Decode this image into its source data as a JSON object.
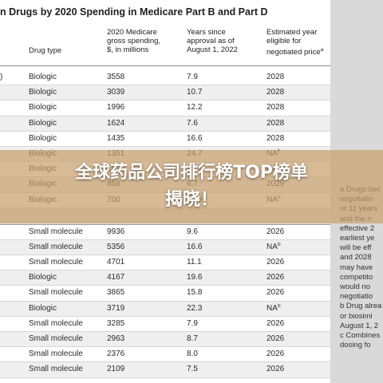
{
  "table": {
    "title": "n Drugs by 2020 Spending in Medicare Part B and Part D",
    "headers": {
      "drug_type": "Drug type",
      "spending": [
        "2020 Medicare",
        "gross spending,",
        "$, in millions"
      ],
      "years": [
        "Years since",
        "approval as of",
        "August 1, 2022"
      ],
      "estimated": [
        "Estimated year",
        "eligible for",
        "negotiated price"
      ],
      "estimated_sup": "a"
    },
    "rows": [
      {
        "lead": ")",
        "type": "Biologic",
        "spend": "3558",
        "years": "7.9",
        "est": "2028",
        "sup": ""
      },
      {
        "lead": "",
        "type": "Biologic",
        "spend": "3039",
        "years": "10.7",
        "est": "2028",
        "sup": ""
      },
      {
        "lead": "",
        "type": "Biologic",
        "spend": "1996",
        "years": "12.2",
        "est": "2028",
        "sup": ""
      },
      {
        "lead": "",
        "type": "Biologic",
        "spend": "1624",
        "years": "7.6",
        "est": "2028",
        "sup": ""
      },
      {
        "lead": "",
        "type": "Biologic",
        "spend": "1435",
        "years": "16.6",
        "est": "2028",
        "sup": ""
      },
      {
        "lead": "",
        "type": "Biologic",
        "spend": "1351",
        "years": "24.7",
        "est": "NA",
        "sup": "b"
      },
      {
        "lead": "",
        "type": "Biologic",
        "spend": "1116",
        "years": "15.1",
        "est": "NA",
        "sup": "b"
      },
      {
        "lead": "",
        "type": "Biologic",
        "spend": "858",
        "years": "6.7",
        "est": "2029",
        "sup": ""
      },
      {
        "lead": "",
        "type": "Biologic",
        "spend": "700",
        "years": "18.9",
        "est": "NA",
        "sup": "b"
      },
      {
        "lead": "",
        "type": "",
        "spend": "",
        "years": "",
        "est": "",
        "sup": "",
        "gap": true
      },
      {
        "lead": "",
        "type": "Small molecule",
        "spend": "9936",
        "years": "9.6",
        "est": "2026",
        "sup": ""
      },
      {
        "lead": "",
        "type": "Small molecule",
        "spend": "5356",
        "years": "16.6",
        "est": "NA",
        "sup": "b"
      },
      {
        "lead": "",
        "type": "Small molecule",
        "spend": "4701",
        "years": "11.1",
        "est": "2026",
        "sup": ""
      },
      {
        "lead": "",
        "type": "Biologic",
        "spend": "4167",
        "years": "19.6",
        "est": "2026",
        "sup": ""
      },
      {
        "lead": "",
        "type": "Small molecule",
        "spend": "3865",
        "years": "15.8",
        "est": "2026",
        "sup": ""
      },
      {
        "lead": "",
        "type": "Biologic",
        "spend": "3719",
        "years": "22.3",
        "est": "NA",
        "sup": "b"
      },
      {
        "lead": "",
        "type": "Small molecule",
        "spend": "3285",
        "years": "7.9",
        "est": "2026",
        "sup": ""
      },
      {
        "lead": "",
        "type": "Small molecule",
        "spend": "2963",
        "years": "8.7",
        "est": "2026",
        "sup": ""
      },
      {
        "lead": "",
        "type": "Small molecule",
        "spend": "2376",
        "years": "8.0",
        "est": "2026",
        "sup": ""
      },
      {
        "lead": "",
        "type": "Small molecule",
        "spend": "2109",
        "years": "7.5",
        "est": "2026",
        "sup": ""
      }
    ]
  },
  "footnotes": [
    "a Drugs bec",
    "negotiatio",
    "or 11 years",
    "and the n",
    "effective 2",
    "earliest ye",
    "will be eff",
    "and 2028",
    "may have",
    "competito",
    "would no",
    "negotiatio",
    "b Drug alrea",
    "or biosimi",
    "August 1, 2",
    "c Combines",
    "dosing fo"
  ],
  "overlay": {
    "line1": "全球药品公司排行榜TOP榜单",
    "line2": "揭晓！"
  }
}
